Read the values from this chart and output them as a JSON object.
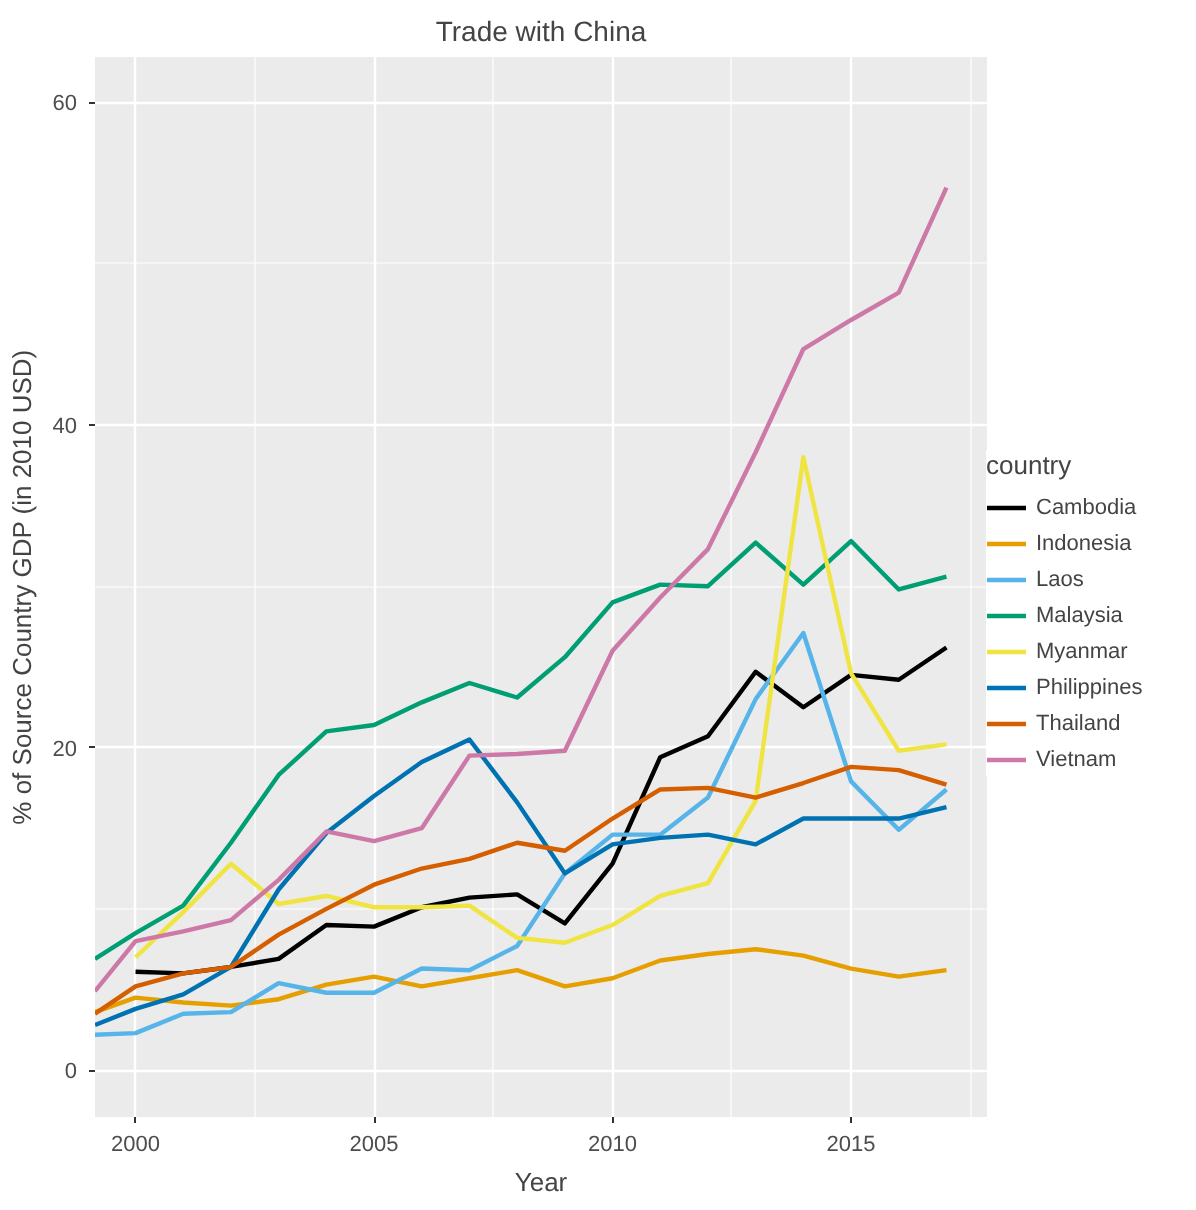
{
  "chart_data": {
    "type": "line",
    "title": "Trade with China",
    "xlabel": "Year",
    "ylabel": "% of Source Country GDP (in 2010 USD)",
    "legend_title": "country",
    "xlim": [
      1999.15,
      2017.85
    ],
    "ylim": [
      -2.9,
      62.8
    ],
    "xticks": [
      2000,
      2005,
      2010,
      2015
    ],
    "yticks": [
      0,
      20,
      40,
      60
    ],
    "grid": true,
    "legend": "right",
    "line_style": "solid",
    "series": [
      {
        "name": "Cambodia",
        "color": "#000000",
        "x": [
          2000,
          2001,
          2002,
          2003,
          2004,
          2005,
          2006,
          2007,
          2008,
          2009,
          2010,
          2011,
          2012,
          2013,
          2014,
          2015,
          2016,
          2017
        ],
        "values": [
          6.1,
          6.0,
          6.4,
          6.9,
          9.0,
          8.9,
          10.1,
          10.7,
          10.9,
          9.1,
          12.8,
          19.4,
          20.7,
          24.7,
          22.5,
          24.5,
          24.2,
          26.2
        ]
      },
      {
        "name": "Indonesia",
        "color": "#e69f00",
        "x": [
          1999.15,
          2000,
          2001,
          2002,
          2003,
          2004,
          2005,
          2006,
          2007,
          2008,
          2009,
          2010,
          2011,
          2012,
          2013,
          2014,
          2015,
          2016,
          2017
        ],
        "values": [
          3.6,
          4.5,
          4.2,
          4.0,
          4.4,
          5.3,
          5.8,
          5.2,
          5.7,
          6.2,
          5.2,
          5.7,
          6.8,
          7.2,
          7.5,
          7.1,
          6.3,
          5.8,
          6.2
        ]
      },
      {
        "name": "Laos",
        "color": "#56b4e9",
        "x": [
          1999.15,
          2000,
          2001,
          2002,
          2003,
          2004,
          2005,
          2006,
          2007,
          2008,
          2009,
          2010,
          2011,
          2012,
          2013,
          2014,
          2015,
          2016,
          2017
        ],
        "values": [
          2.2,
          2.3,
          3.5,
          3.6,
          5.4,
          4.8,
          4.8,
          6.3,
          6.2,
          7.7,
          12.2,
          14.6,
          14.6,
          16.9,
          23.0,
          27.1,
          17.9,
          14.9,
          17.4
        ]
      },
      {
        "name": "Malaysia",
        "color": "#009e73",
        "x": [
          1999.15,
          2000,
          2001,
          2002,
          2003,
          2004,
          2005,
          2006,
          2007,
          2008,
          2009,
          2010,
          2011,
          2012,
          2013,
          2014,
          2015,
          2016,
          2017
        ],
        "values": [
          6.9,
          8.5,
          10.2,
          14.1,
          18.3,
          21.0,
          21.4,
          22.8,
          24.0,
          23.1,
          25.6,
          29.0,
          30.1,
          30.0,
          32.7,
          30.1,
          32.8,
          29.8,
          30.6
        ]
      },
      {
        "name": "Myanmar",
        "color": "#f0e442",
        "x": [
          2000,
          2001,
          2002,
          2003,
          2004,
          2005,
          2006,
          2007,
          2008,
          2009,
          2010,
          2011,
          2012,
          2013,
          2014,
          2015,
          2016,
          2017
        ],
        "values": [
          7.0,
          9.8,
          12.8,
          10.3,
          10.8,
          10.1,
          10.1,
          10.2,
          8.2,
          7.9,
          9.0,
          10.8,
          11.6,
          16.7,
          38.0,
          24.6,
          19.8,
          20.2
        ]
      },
      {
        "name": "Philippines",
        "color": "#0072b2",
        "x": [
          1999.15,
          2000,
          2001,
          2002,
          2003,
          2004,
          2005,
          2006,
          2007,
          2008,
          2009,
          2010,
          2011,
          2012,
          2013,
          2014,
          2015,
          2016,
          2017
        ],
        "values": [
          2.8,
          3.8,
          4.7,
          6.4,
          11.2,
          14.7,
          17.0,
          19.1,
          20.5,
          16.6,
          12.2,
          14.0,
          14.4,
          14.6,
          14.0,
          15.6,
          15.6,
          15.6,
          16.3
        ]
      },
      {
        "name": "Thailand",
        "color": "#d55e00",
        "x": [
          1999.15,
          2000,
          2001,
          2002,
          2003,
          2004,
          2005,
          2006,
          2007,
          2008,
          2009,
          2010,
          2011,
          2012,
          2013,
          2014,
          2015,
          2016,
          2017
        ],
        "values": [
          3.5,
          5.2,
          6.0,
          6.4,
          8.4,
          10.0,
          11.5,
          12.5,
          13.1,
          14.1,
          13.6,
          15.6,
          17.4,
          17.5,
          16.9,
          17.8,
          18.8,
          18.6,
          17.7
        ]
      },
      {
        "name": "Vietnam",
        "color": "#cc79a7",
        "x": [
          1999.15,
          2000,
          2001,
          2002,
          2003,
          2004,
          2005,
          2006,
          2007,
          2008,
          2009,
          2010,
          2011,
          2012,
          2013,
          2014,
          2015,
          2016,
          2017
        ],
        "values": [
          4.9,
          8.0,
          8.6,
          9.3,
          11.8,
          14.8,
          14.2,
          15.0,
          19.5,
          19.6,
          19.8,
          26.0,
          29.3,
          32.3,
          38.3,
          44.7,
          46.5,
          48.2,
          54.7
        ]
      }
    ]
  }
}
